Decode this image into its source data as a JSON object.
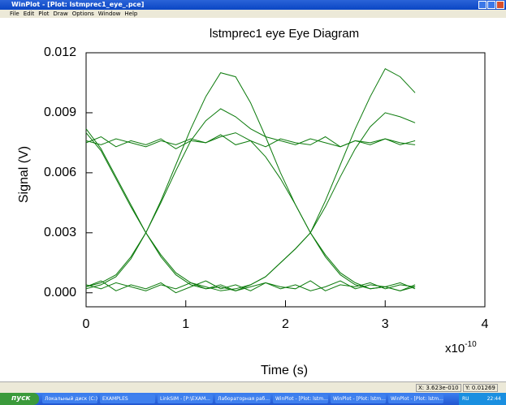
{
  "window": {
    "title": "WinPlot - [Plot: lstmprec1_eye_.pce]",
    "menu": [
      "File",
      "Edit",
      "Plot",
      "Draw",
      "Options",
      "Window",
      "Help"
    ]
  },
  "chart_data": {
    "type": "line",
    "title": "lstmprec1 eye  Eye Diagram",
    "x_label": "Time (s)",
    "y_label": "Signal (V)",
    "x_multiplier": "x10",
    "x_exponent": "-10",
    "xlim": [
      0,
      4
    ],
    "xticks": [
      0,
      1,
      2,
      3,
      4
    ],
    "ylim": [
      -0.0007,
      0.012
    ],
    "yticks": [
      {
        "value": 0,
        "label": "0.000"
      },
      0.003,
      0.006,
      0.009,
      0.012
    ],
    "color": "#0b7a0b",
    "x": [
      0,
      0.15,
      0.3,
      0.45,
      0.6,
      0.75,
      0.9,
      1.05,
      1.2,
      1.35,
      1.5,
      1.65,
      1.8,
      1.95,
      2.1,
      2.25,
      2.4,
      2.55,
      2.7,
      2.85,
      3.0,
      3.15,
      3.3
    ],
    "series": [
      {
        "values": [
          0.0075,
          0.0078,
          0.0073,
          0.0076,
          0.0074,
          0.0077,
          0.0072,
          0.0076,
          0.0075,
          0.0079,
          0.0074,
          0.0076,
          0.0073,
          0.0077,
          0.0075,
          0.0074,
          0.0078,
          0.0073,
          0.0076,
          0.0075,
          0.0077,
          0.0074,
          0.0076
        ]
      },
      {
        "values": [
          0.0003,
          0.0006,
          0.0001,
          0.0004,
          0.0002,
          0.0005,
          0.0,
          0.0003,
          0.0006,
          0.0002,
          0.0004,
          0.0001,
          0.0005,
          0.0003,
          0.0002,
          0.0006,
          0.0001,
          0.0004,
          0.0003,
          0.0005,
          0.0002,
          0.0004,
          0.0003
        ]
      },
      {
        "values": [
          0.0082,
          0.0072,
          0.0058,
          0.0044,
          0.003,
          0.0018,
          0.0009,
          0.0004,
          0.0002,
          0.0003,
          0.0001,
          0.0004,
          0.0008,
          0.0015,
          0.0022,
          0.003,
          0.0043,
          0.0058,
          0.0072,
          0.0083,
          0.009,
          0.0088,
          0.0085
        ]
      },
      {
        "values": [
          0.0002,
          0.0004,
          0.0008,
          0.0017,
          0.003,
          0.0046,
          0.0064,
          0.0082,
          0.0098,
          0.011,
          0.0108,
          0.0095,
          0.0078,
          0.006,
          0.0044,
          0.003,
          0.0019,
          0.001,
          0.0005,
          0.0002,
          0.0003,
          0.0001,
          0.0004
        ]
      },
      {
        "values": [
          0.0076,
          0.0074,
          0.0077,
          0.0075,
          0.0073,
          0.0076,
          0.0074,
          0.0077,
          0.0075,
          0.0078,
          0.008,
          0.0076,
          0.0068,
          0.0057,
          0.0044,
          0.003,
          0.0018,
          0.0009,
          0.0004,
          0.0002,
          0.0003,
          0.0001,
          0.0003
        ]
      },
      {
        "values": [
          0.0004,
          0.0002,
          0.0005,
          0.0003,
          0.0001,
          0.0004,
          0.0002,
          0.0005,
          0.0003,
          0.0001,
          0.0002,
          0.0004,
          0.0008,
          0.0015,
          0.0022,
          0.003,
          0.0046,
          0.0064,
          0.0082,
          0.0098,
          0.0112,
          0.0108,
          0.01
        ]
      },
      {
        "values": [
          0.0003,
          0.0005,
          0.0009,
          0.0018,
          0.003,
          0.0045,
          0.0061,
          0.0076,
          0.0086,
          0.0092,
          0.0088,
          0.0082,
          0.0078,
          0.0076,
          0.0074,
          0.0077,
          0.0075,
          0.0073,
          0.0076,
          0.0074,
          0.0077,
          0.0075,
          0.0074
        ]
      },
      {
        "values": [
          0.008,
          0.0071,
          0.0057,
          0.0043,
          0.003,
          0.0019,
          0.001,
          0.0005,
          0.0002,
          0.0004,
          0.0001,
          0.0003,
          0.0005,
          0.0002,
          0.0004,
          0.0001,
          0.0003,
          0.0006,
          0.0002,
          0.0004,
          0.0003,
          0.0005,
          0.0002
        ]
      }
    ]
  },
  "status": {
    "x": "X: 3.623e-010",
    "y": "Y: 0.01269"
  },
  "taskbar": {
    "start": "пуск",
    "items": [
      "Локальный диск (C:)",
      "EXAMPLES",
      "LinkSIM - [P:\\EXAM...",
      "Лабораторная раб...",
      "WinPlot - [Plot: lstm...",
      "WinPlot - [Plot: lstm...",
      "WinPlot - [Plot: lstm..."
    ],
    "lang": "RU",
    "clock": "22:44"
  }
}
